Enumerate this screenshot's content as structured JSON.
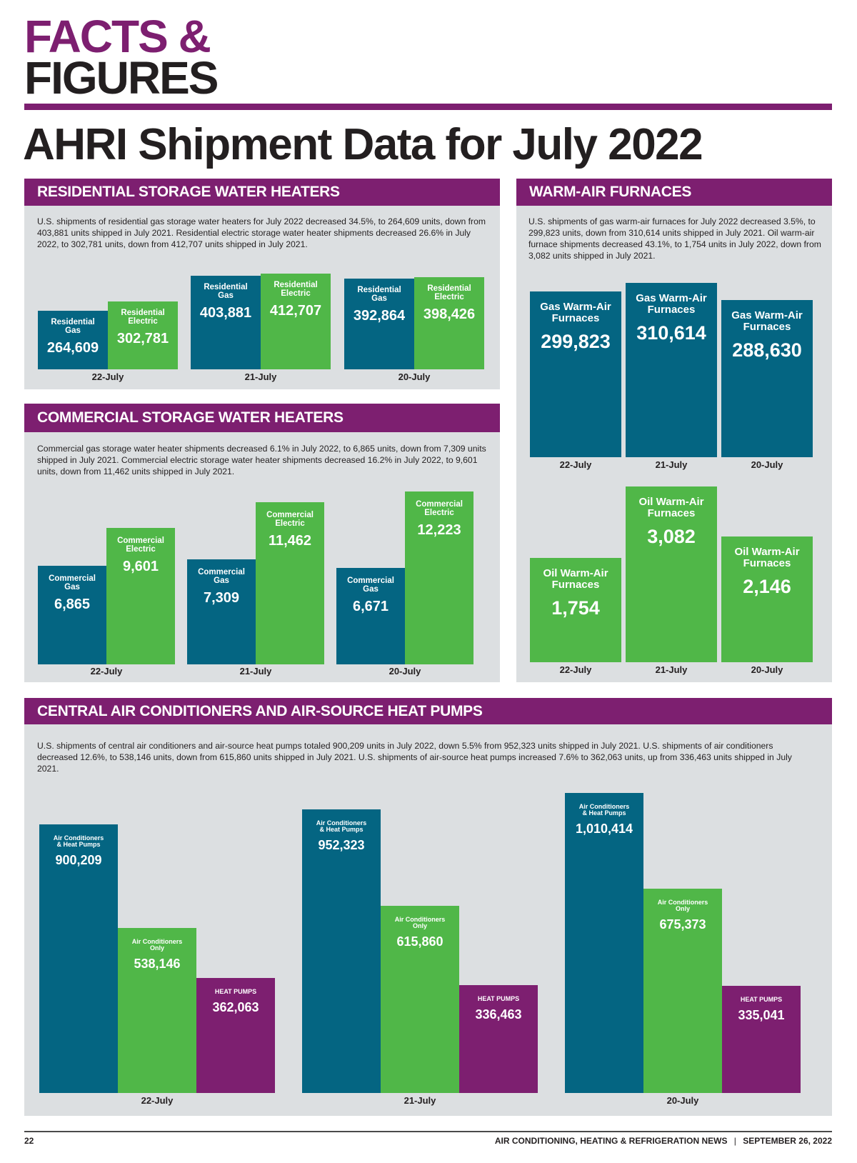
{
  "masthead": {
    "line1": "FACTS &",
    "line2": "FIGURES"
  },
  "headline": "AHRI Shipment Data for July 2022",
  "colors": {
    "purple": "#7d1f70",
    "teal": "#046582",
    "green": "#50b748",
    "panel": "#dcdfe1"
  },
  "residential": {
    "title": "RESIDENTIAL STORAGE WATER HEATERS",
    "description": "U.S. shipments of residential gas storage water heaters for July 2022 decreased 34.5%, to 264,609 units, down from 403,881 units shipped in July 2021. Residential electric storage water heater shipments decreased 26.6% in July 2022, to 302,781 units, down from 412,707 units shipped in July 2021."
  },
  "furnaces": {
    "title": "WARM-AIR FURNACES",
    "description": "U.S. shipments of gas warm-air furnaces for July 2022 decreased 3.5%, to 299,823 units, down from 310,614 units shipped in July 2021. Oil warm-air furnace shipments decreased 43.1%, to 1,754 units in July 2022, down from 3,082 units shipped in July 2021."
  },
  "commercial": {
    "title": "COMMERCIAL STORAGE WATER HEATERS",
    "description": "Commercial gas storage water heater shipments decreased 6.1% in July 2022, to 6,865 units, down from 7,309 units shipped in July 2021. Commercial electric storage water heater shipments decreased 16.2% in July 2022, to 9,601 units, down from 11,462 units shipped in July 2021."
  },
  "central_ac": {
    "title": "CENTRAL AIR CONDITIONERS AND AIR-SOURCE HEAT PUMPS",
    "description": "U.S. shipments of central air conditioners and air-source heat pumps totaled 900,209 units in July 2022, down 5.5% from 952,323 units shipped in July 2021. U.S. shipments of air conditioners decreased 12.6%, to 538,146 units, down from 615,860 units shipped in July 2021. U.S. shipments of air-source heat pumps increased 7.6% to 362,063 units, up from 336,463 units shipped in July 2021."
  },
  "footer": {
    "page_number": "22",
    "publication": "AIR CONDITIONING, HEATING & REFRIGERATION NEWS",
    "separator": "|",
    "date": "SEPTEMBER 26, 2022"
  },
  "chart_data": [
    {
      "id": "residential",
      "type": "bar",
      "title": "RESIDENTIAL STORAGE WATER HEATERS",
      "categories": [
        "22-July",
        "21-July",
        "20-July"
      ],
      "series": [
        {
          "name": "Residential Gas",
          "label_lines": [
            "Residential",
            "Gas"
          ],
          "color": "#046582",
          "values": [
            264609,
            403881,
            392864
          ],
          "display": [
            "264,609",
            "403,881",
            "392,864"
          ]
        },
        {
          "name": "Residential Electric",
          "label_lines": [
            "Residential",
            "Electric"
          ],
          "color": "#50b748",
          "values": [
            302781,
            412707,
            398426
          ],
          "display": [
            "302,781",
            "412,707",
            "398,426"
          ]
        }
      ],
      "xlabel": "",
      "ylabel": "",
      "grid": false
    },
    {
      "id": "commercial",
      "type": "bar",
      "title": "COMMERCIAL STORAGE WATER HEATERS",
      "categories": [
        "22-July",
        "21-July",
        "20-July"
      ],
      "series": [
        {
          "name": "Commercial Gas",
          "label_lines": [
            "Commercial",
            "Gas"
          ],
          "color": "#046582",
          "values": [
            6865,
            7309,
            6671
          ],
          "display": [
            "6,865",
            "7,309",
            "6,671"
          ]
        },
        {
          "name": "Commercial Electric",
          "label_lines": [
            "Commercial",
            "Electric"
          ],
          "color": "#50b748",
          "values": [
            9601,
            11462,
            12223
          ],
          "display": [
            "9,601",
            "11,462",
            "12,223"
          ]
        }
      ],
      "xlabel": "",
      "ylabel": "",
      "grid": false
    },
    {
      "id": "gas_furnaces",
      "type": "bar",
      "title": "WARM-AIR FURNACES (Gas)",
      "categories": [
        "22-July",
        "21-July",
        "20-July"
      ],
      "series": [
        {
          "name": "Gas Warm-Air Furnaces",
          "label_lines": [
            "Gas Warm-Air",
            "Furnaces"
          ],
          "color": "#046582",
          "values": [
            299823,
            310614,
            288630
          ],
          "display": [
            "299,823",
            "310,614",
            "288,630"
          ]
        }
      ],
      "xlabel": "",
      "ylabel": "",
      "grid": false
    },
    {
      "id": "oil_furnaces",
      "type": "bar",
      "title": "WARM-AIR FURNACES (Oil)",
      "categories": [
        "22-July",
        "21-July",
        "20-July"
      ],
      "series": [
        {
          "name": "Oil Warm-Air Furnaces",
          "label_lines": [
            "Oil Warm-Air",
            "Furnaces"
          ],
          "color": "#50b748",
          "values": [
            1754,
            3082,
            2146
          ],
          "display": [
            "1,754",
            "3,082",
            "2,146"
          ]
        }
      ],
      "xlabel": "",
      "ylabel": "",
      "grid": false
    },
    {
      "id": "central_ac",
      "type": "bar",
      "title": "CENTRAL AIR CONDITIONERS AND AIR-SOURCE HEAT PUMPS",
      "categories": [
        "22-July",
        "21-July",
        "20-July"
      ],
      "series": [
        {
          "name": "Air Conditioners & Heat Pumps",
          "label_lines": [
            "Air Conditioners",
            "& Heat Pumps"
          ],
          "color": "#046582",
          "values": [
            900209,
            952323,
            1010414
          ],
          "display": [
            "900,209",
            "952,323",
            "1,010,414"
          ]
        },
        {
          "name": "Air Conditioners Only",
          "label_lines": [
            "Air Conditioners",
            "Only"
          ],
          "color": "#50b748",
          "values": [
            538146,
            615860,
            675373
          ],
          "display": [
            "538,146",
            "615,860",
            "675,373"
          ]
        },
        {
          "name": "HEAT PUMPS",
          "label_lines": [
            "HEAT PUMPS"
          ],
          "color": "#7d1f70",
          "values": [
            362063,
            336463,
            335041
          ],
          "display": [
            "362,063",
            "336,463",
            "335,041"
          ]
        }
      ],
      "xlabel": "",
      "ylabel": "",
      "grid": false
    }
  ]
}
